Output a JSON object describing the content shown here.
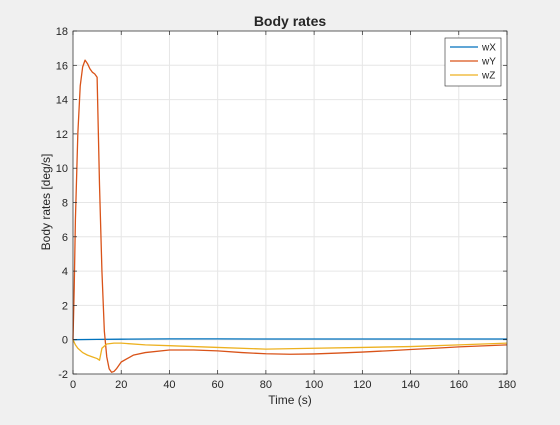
{
  "chart_data": {
    "type": "line",
    "title": "Body rates",
    "xlabel": "Time (s)",
    "ylabel": "Body rates [deg/s]",
    "xlim": [
      0,
      180
    ],
    "ylim": [
      -2,
      18
    ],
    "xticks": [
      0,
      20,
      40,
      60,
      80,
      100,
      120,
      140,
      160,
      180
    ],
    "yticks": [
      -2,
      0,
      2,
      4,
      6,
      8,
      10,
      12,
      14,
      16,
      18
    ],
    "grid": true,
    "legend": {
      "position": "top-right"
    },
    "series": [
      {
        "name": "wX",
        "color": "#0072BD",
        "x": [
          0,
          10,
          20,
          40,
          60,
          80,
          100,
          120,
          140,
          160,
          180
        ],
        "y": [
          0,
          0.02,
          0.03,
          0.05,
          0.05,
          0.04,
          0.04,
          0.04,
          0.04,
          0.04,
          0.04
        ]
      },
      {
        "name": "wY",
        "color": "#D95319",
        "x": [
          0,
          0.5,
          1,
          2,
          3,
          4,
          5,
          6,
          7,
          8,
          9,
          10,
          11,
          12,
          13,
          14,
          15,
          16,
          17,
          18,
          20,
          25,
          30,
          40,
          50,
          60,
          70,
          80,
          90,
          100,
          110,
          120,
          130,
          140,
          150,
          160,
          170,
          180
        ],
        "y": [
          0,
          3,
          7,
          12,
          14.8,
          15.9,
          16.3,
          16.1,
          15.8,
          15.6,
          15.5,
          15.3,
          9,
          4,
          0.5,
          -1.0,
          -1.7,
          -1.9,
          -1.85,
          -1.7,
          -1.3,
          -0.9,
          -0.75,
          -0.6,
          -0.6,
          -0.65,
          -0.75,
          -0.82,
          -0.85,
          -0.83,
          -0.78,
          -0.72,
          -0.65,
          -0.57,
          -0.5,
          -0.42,
          -0.36,
          -0.3
        ]
      },
      {
        "name": "wZ",
        "color": "#EDB120",
        "x": [
          0,
          1,
          2,
          4,
          6,
          8,
          10,
          11,
          12,
          14,
          17,
          20,
          30,
          40,
          60,
          80,
          100,
          120,
          140,
          160,
          180
        ],
        "y": [
          0,
          -0.3,
          -0.5,
          -0.75,
          -0.9,
          -1.0,
          -1.1,
          -1.2,
          -0.5,
          -0.25,
          -0.2,
          -0.2,
          -0.3,
          -0.35,
          -0.45,
          -0.55,
          -0.5,
          -0.45,
          -0.4,
          -0.3,
          -0.2
        ]
      }
    ]
  }
}
